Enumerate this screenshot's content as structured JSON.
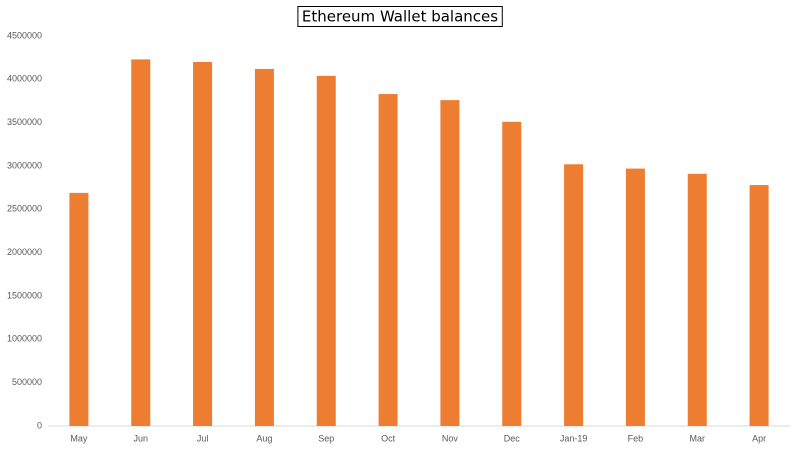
{
  "chart_data": {
    "type": "bar",
    "title": "Ethereum Wallet balances",
    "categories": [
      "May",
      "Jun",
      "Jul",
      "Aug",
      "Sep",
      "Oct",
      "Nov",
      "Dec",
      "Jan-19",
      "Feb",
      "Mar",
      "Apr"
    ],
    "values": [
      2690000,
      4230000,
      4200000,
      4120000,
      4040000,
      3830000,
      3760000,
      3510000,
      3020000,
      2970000,
      2910000,
      2780000
    ],
    "color": "#ed7d31",
    "ylim": [
      0,
      4500000
    ],
    "yticks": [
      0,
      500000,
      1000000,
      1500000,
      2000000,
      2500000,
      3000000,
      3500000,
      4000000,
      4500000
    ],
    "grid": false
  }
}
